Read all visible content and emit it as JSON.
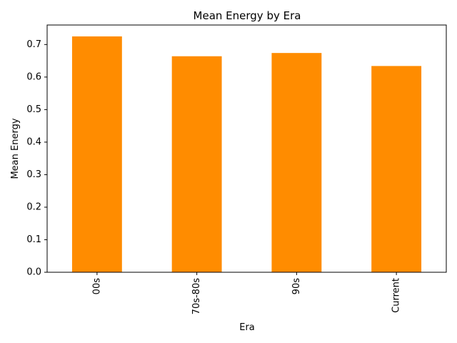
{
  "chart_data": {
    "type": "bar",
    "title": "Mean Energy by Era",
    "xlabel": "Era",
    "ylabel": "Mean Energy",
    "categories": [
      "00s",
      "70s-80s",
      "90s",
      "Current"
    ],
    "values": [
      0.725,
      0.664,
      0.674,
      0.634
    ],
    "ylim": [
      0,
      0.76
    ],
    "yticks": [
      "0.0",
      "0.1",
      "0.2",
      "0.3",
      "0.4",
      "0.5",
      "0.6",
      "0.7"
    ],
    "bar_color": "#ff8c00",
    "grid": false,
    "legend": "none"
  }
}
